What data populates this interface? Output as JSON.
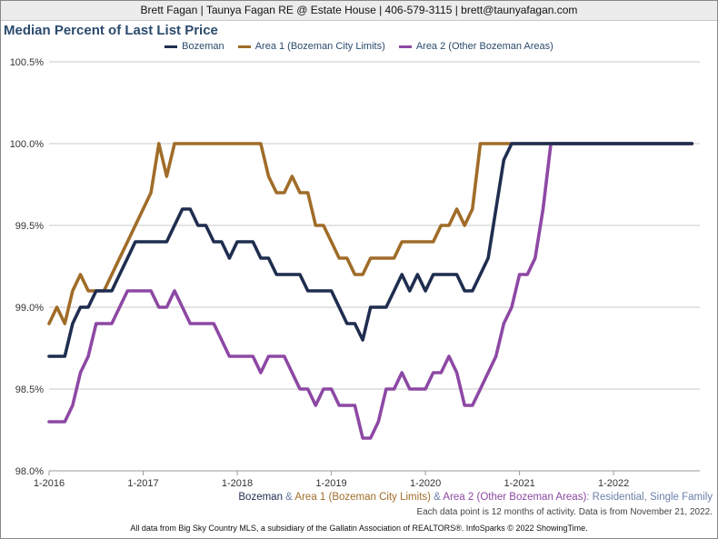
{
  "header": {
    "text": "Brett Fagan | Taunya Fagan RE @ Estate House | 406-579-3115 | brett@taunyafagan.com"
  },
  "colors": {
    "bozeman": "#1f2d4f",
    "area1": "#a06c28",
    "area2": "#8d48a4",
    "grid": "#c9c9c9",
    "title": "#2b4a6d"
  },
  "subtitle": {
    "s1": "Bozeman",
    "amp1": " & ",
    "s2": "Area 1 (Bozeman City Limits)",
    "amp2": " & ",
    "s3": "Area 2 (Other Bozeman Areas)",
    "suffix": ": Residential, Single Family"
  },
  "activity_note": "Each data point is 12 months of activity. Data is from November 21, 2022.",
  "footer": "All data from Big Sky Country MLS, a subsidiary of the Gallatin Association of REALTORS®. InfoSparks © 2022 ShowingTime.",
  "chart_data": {
    "type": "line",
    "title": "Median Percent of Last List Price",
    "ylim": [
      98.0,
      100.5
    ],
    "yticks": [
      98.0,
      98.5,
      99.0,
      99.5,
      100.0,
      100.5
    ],
    "ytick_labels": [
      "98.0%",
      "98.5%",
      "99.0%",
      "99.5%",
      "100.0%",
      "100.5%"
    ],
    "xticks": [
      2016,
      2017,
      2018,
      2019,
      2020,
      2021,
      2022
    ],
    "xtick_labels": [
      "1-2016",
      "1-2017",
      "1-2018",
      "1-2019",
      "1-2020",
      "1-2021",
      "1-2022"
    ],
    "x_start": "2016-01",
    "grid": true,
    "legend_position": "top",
    "series": [
      {
        "name": "Bozeman",
        "values": [
          98.7,
          98.7,
          98.7,
          98.9,
          99.0,
          99.0,
          99.1,
          99.1,
          99.1,
          99.2,
          99.3,
          99.4,
          99.4,
          99.4,
          99.4,
          99.4,
          99.5,
          99.6,
          99.6,
          99.5,
          99.5,
          99.4,
          99.4,
          99.3,
          99.4,
          99.4,
          99.4,
          99.3,
          99.3,
          99.2,
          99.2,
          99.2,
          99.2,
          99.1,
          99.1,
          99.1,
          99.1,
          99.0,
          98.9,
          98.9,
          98.8,
          99.0,
          99.0,
          99.0,
          99.1,
          99.2,
          99.1,
          99.2,
          99.1,
          99.2,
          99.2,
          99.2,
          99.2,
          99.1,
          99.1,
          99.2,
          99.3,
          99.6,
          99.9,
          100.0,
          100.0,
          100.0,
          100.0,
          100.0,
          100.0,
          100.0,
          100.0,
          100.0,
          100.0,
          100.0,
          100.0,
          100.0,
          100.0,
          100.0,
          100.0,
          100.0,
          100.0,
          100.0,
          100.0,
          100.0,
          100.0,
          100.0,
          100.0
        ]
      },
      {
        "name": "Area 1 (Bozeman City Limits)",
        "values": [
          98.9,
          99.0,
          98.9,
          99.1,
          99.2,
          99.1,
          99.1,
          99.1,
          99.2,
          99.3,
          99.4,
          99.5,
          99.6,
          99.7,
          100.0,
          99.8,
          100.0,
          100.0,
          100.0,
          100.0,
          100.0,
          100.0,
          100.0,
          100.0,
          100.0,
          100.0,
          100.0,
          100.0,
          99.8,
          99.7,
          99.7,
          99.8,
          99.7,
          99.7,
          99.5,
          99.5,
          99.4,
          99.3,
          99.3,
          99.2,
          99.2,
          99.3,
          99.3,
          99.3,
          99.3,
          99.4,
          99.4,
          99.4,
          99.4,
          99.4,
          99.5,
          99.5,
          99.6,
          99.5,
          99.6,
          100.0,
          100.0,
          100.0,
          100.0,
          100.0,
          100.0,
          100.0,
          100.0,
          100.0,
          100.0,
          100.0,
          100.0,
          100.0,
          100.0,
          100.0,
          100.0,
          100.0,
          100.0,
          100.0,
          100.0,
          100.0,
          100.0,
          100.0,
          100.0,
          100.0,
          100.0,
          100.0,
          100.0
        ]
      },
      {
        "name": "Area 2 (Other Bozeman Areas)",
        "values": [
          98.3,
          98.3,
          98.3,
          98.4,
          98.6,
          98.7,
          98.9,
          98.9,
          98.9,
          99.0,
          99.1,
          99.1,
          99.1,
          99.1,
          99.0,
          99.0,
          99.1,
          99.0,
          98.9,
          98.9,
          98.9,
          98.9,
          98.8,
          98.7,
          98.7,
          98.7,
          98.7,
          98.6,
          98.7,
          98.7,
          98.7,
          98.6,
          98.5,
          98.5,
          98.4,
          98.5,
          98.5,
          98.4,
          98.4,
          98.4,
          98.2,
          98.2,
          98.3,
          98.5,
          98.5,
          98.6,
          98.5,
          98.5,
          98.5,
          98.6,
          98.6,
          98.7,
          98.6,
          98.4,
          98.4,
          98.5,
          98.6,
          98.7,
          98.9,
          99.0,
          99.2,
          99.2,
          99.3,
          99.6,
          100.0,
          100.0,
          100.0,
          100.0,
          100.0,
          100.0,
          100.0,
          100.0,
          100.0,
          100.0,
          100.0,
          100.0,
          100.0,
          100.0,
          100.0,
          100.0,
          100.0,
          100.0,
          100.0
        ]
      }
    ]
  }
}
